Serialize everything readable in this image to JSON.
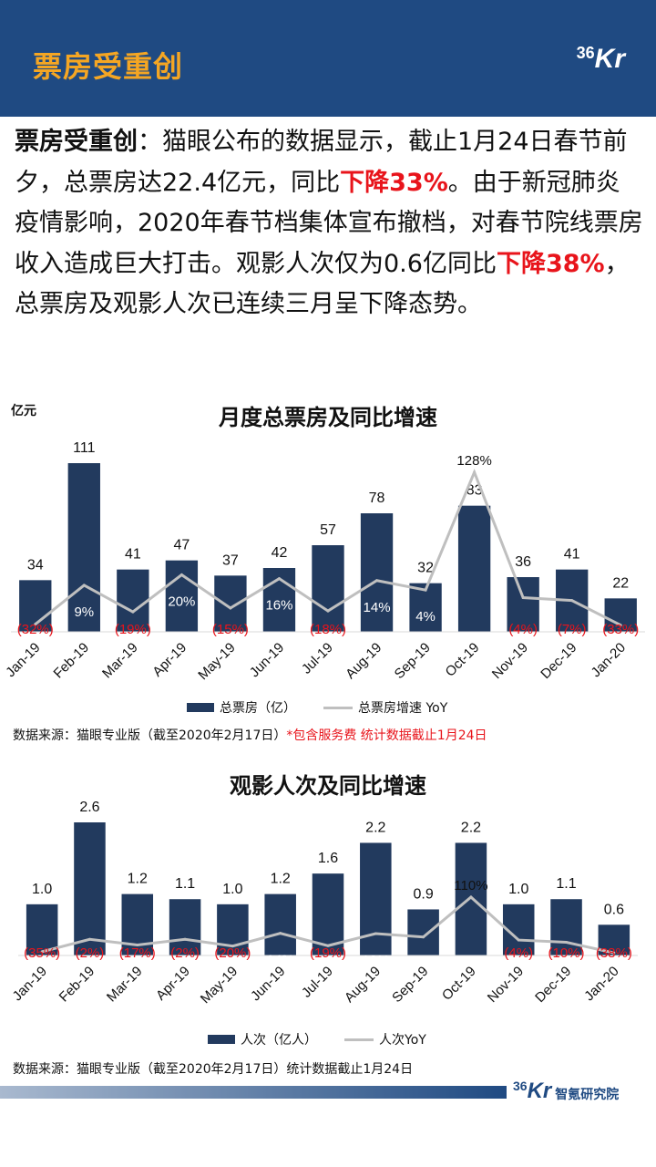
{
  "header": {
    "title": "票房受重创",
    "logo_num": "36",
    "logo_kr": "Kr"
  },
  "intro": {
    "lead": "票房受重创",
    "p1": "：猫眼公布的数据显示，截止1月24日春节前夕，总票房达22.4亿元，同比",
    "red1": "下降33%",
    "p2": "。由于新冠肺炎疫情影响，2020年春节档集体宣布撤档，对春节院线票房收入造成巨大打击。观影人次仅为0.6亿同比",
    "red2": "下降38%",
    "p3": "，总票房及观影人次已连续三月呈下降态势。"
  },
  "chart1_unit": "亿元",
  "chart1_source": {
    "text": "数据来源：猫眼专业版（截至2020年2月17日）",
    "red": "*包含服务费 统计数据截止1月24日"
  },
  "chart2_source": {
    "text": "数据来源：猫眼专业版（截至2020年2月17日）统计数据截止1月24日"
  },
  "footer": {
    "logo_num": "36",
    "logo_kr": "Kr",
    "name": "智氪研究院"
  },
  "colors": {
    "bar": "#223a5e",
    "line": "#bfbfbf",
    "negative": "#e8141b",
    "header": "#1f4a82",
    "title": "#f5a623"
  },
  "chart_data": [
    {
      "type": "bar",
      "title": "月度总票房及同比增速",
      "ylabel": "亿元",
      "categories": [
        "Jan-19",
        "Feb-19",
        "Mar-19",
        "Apr-19",
        "May-19",
        "Jun-19",
        "Jul-19",
        "Aug-19",
        "Sep-19",
        "Oct-19",
        "Nov-19",
        "Dec-19",
        "Jan-20"
      ],
      "series": [
        {
          "name": "总票房（亿）",
          "type": "bar",
          "values": [
            34,
            111,
            41,
            47,
            37,
            42,
            57,
            78,
            32,
            83,
            36,
            41,
            22
          ],
          "labels": [
            "34",
            "111",
            "41",
            "47",
            "37",
            "42",
            "57",
            "78",
            "32",
            "83",
            "36",
            "41",
            "22"
          ]
        },
        {
          "name": "总票房增速 YoY",
          "type": "line",
          "values": [
            -32,
            9,
            -19,
            20,
            -15,
            16,
            -18,
            14,
            4,
            128,
            -4,
            -7,
            -33
          ],
          "labels": [
            "(32%)",
            "9%",
            "(19%)",
            "20%",
            "(15%)",
            "16%",
            "(18%)",
            "14%",
            "4%",
            "128%",
            "(4%)",
            "(7%)",
            "(33%)"
          ]
        }
      ]
    },
    {
      "type": "bar",
      "title": "观影人次及同比增速",
      "categories": [
        "Jan-19",
        "Feb-19",
        "Mar-19",
        "Apr-19",
        "May-19",
        "Jun-19",
        "Jul-19",
        "Aug-19",
        "Sep-19",
        "Oct-19",
        "Nov-19",
        "Dec-19",
        "Jan-20"
      ],
      "series": [
        {
          "name": "人次（亿人）",
          "type": "bar",
          "values": [
            1.0,
            2.6,
            1.2,
            1.1,
            1.0,
            1.2,
            1.6,
            2.2,
            0.9,
            2.2,
            1.0,
            1.1,
            0.6
          ],
          "labels": [
            "1.0",
            "2.6",
            "1.2",
            "1.1",
            "1.0",
            "1.2",
            "1.6",
            "2.2",
            "0.9",
            "2.2",
            "1.0",
            "1.1",
            "0.6"
          ]
        },
        {
          "name": "人次YoY",
          "type": "line",
          "values": [
            -35,
            -2,
            -17,
            -2,
            -20,
            14,
            -19,
            13,
            4,
            110,
            -4,
            -10,
            -38
          ],
          "labels": [
            "(35%)",
            "(2%)",
            "(17%)",
            "(2%)",
            "(20%)",
            "14%",
            "(19%)",
            "13%",
            "4%",
            "110%",
            "(4%)",
            "(10%)",
            "(38%)"
          ]
        }
      ]
    }
  ]
}
